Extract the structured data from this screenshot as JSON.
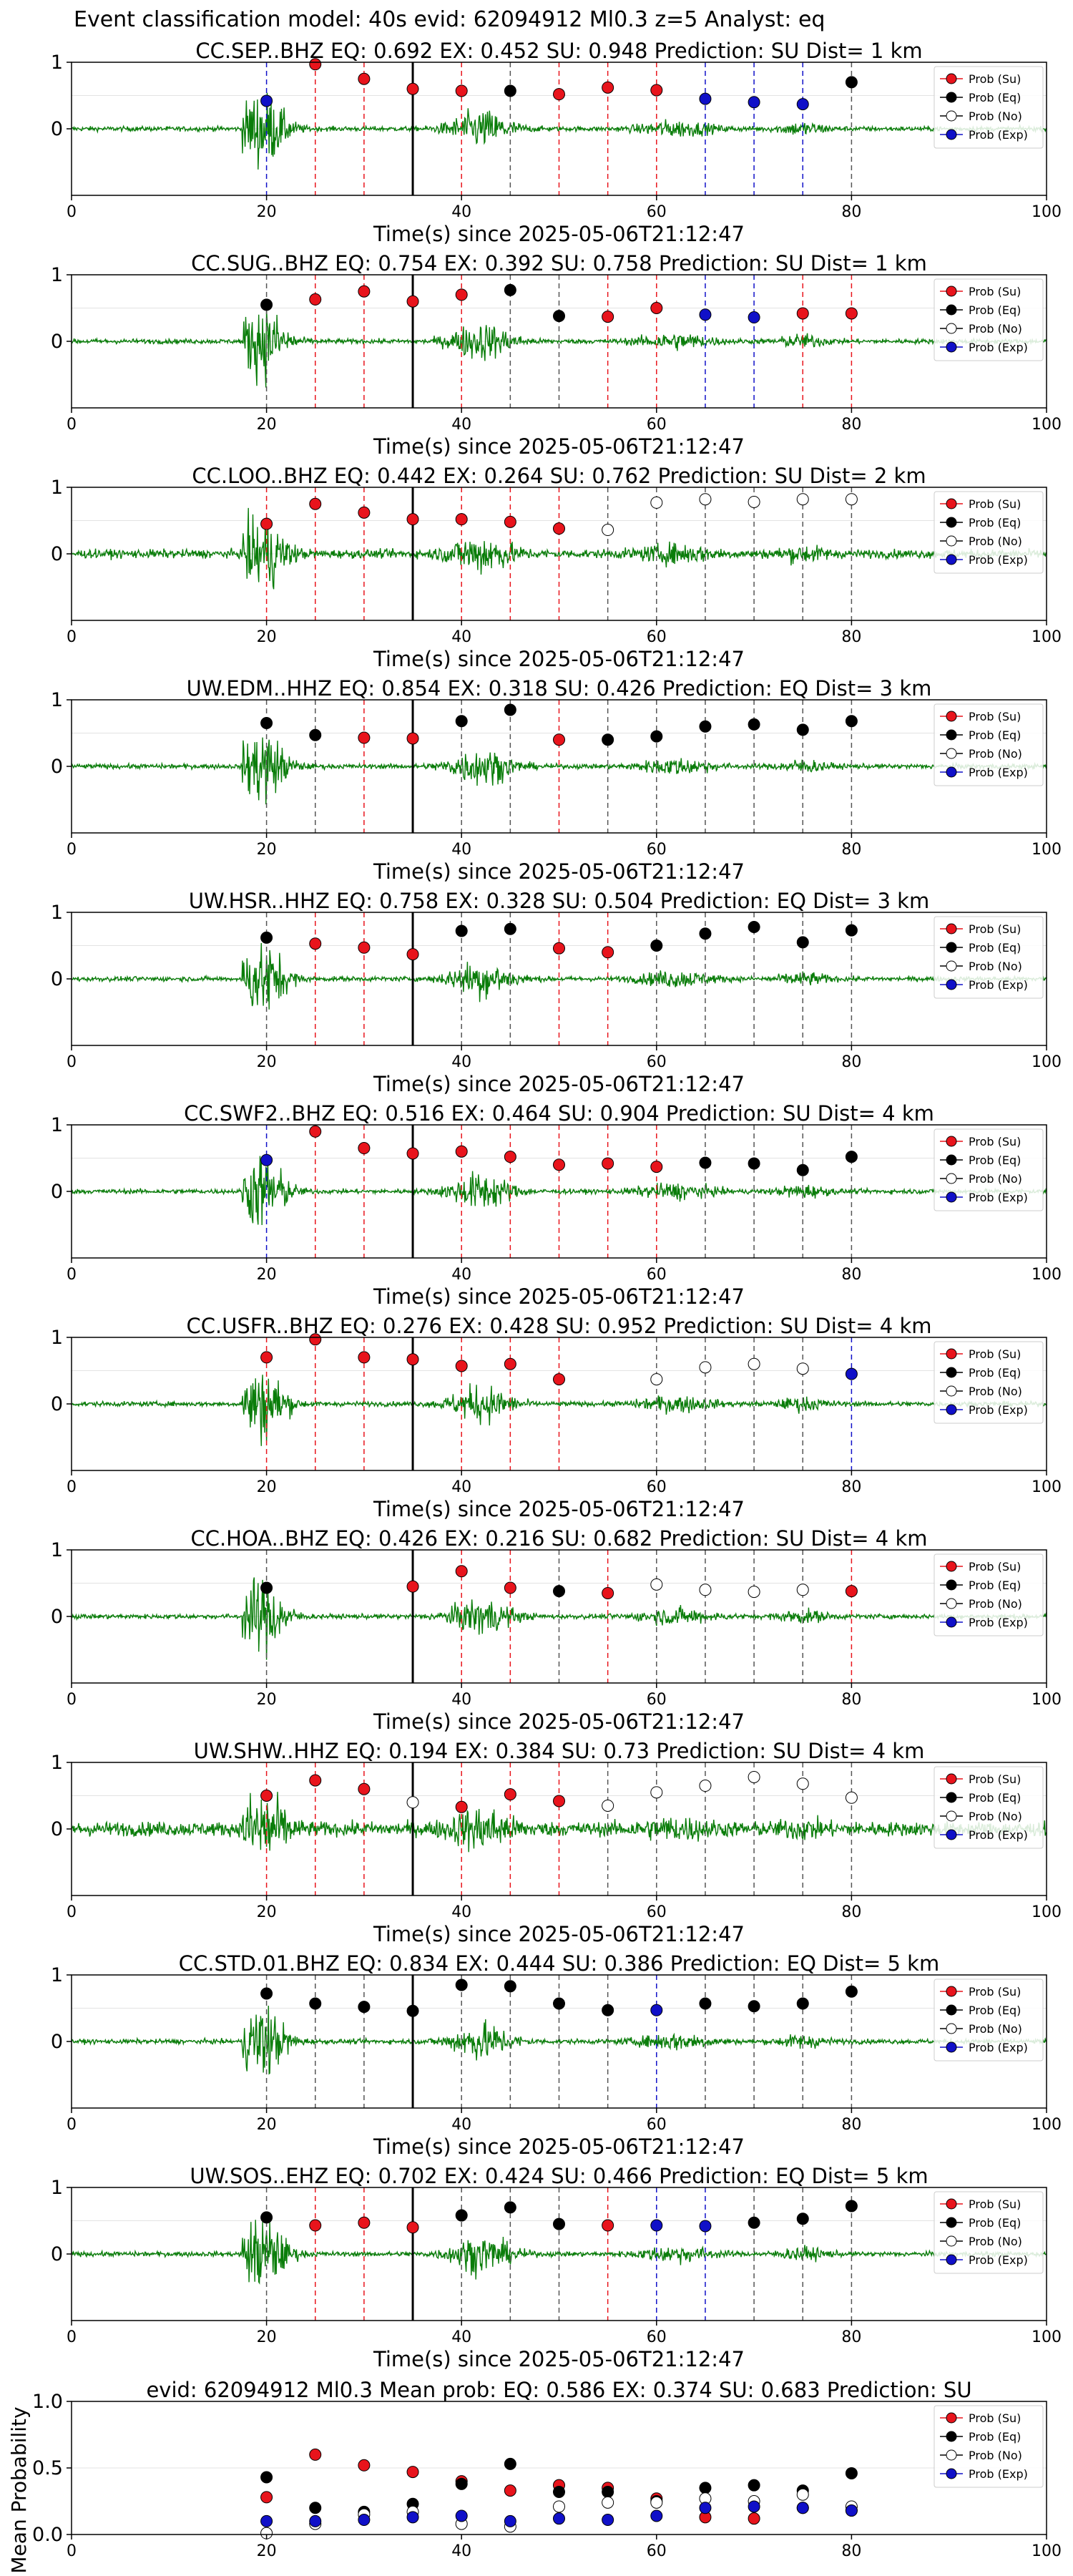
{
  "figure": {
    "suptitle": "Event classification model: 40s evid: 62094912 Ml0.3 z=5 Analyst: eq",
    "xlabel": "Time(s) since 2025-05-06T21:12:47",
    "mean_ylabel": "Mean Probability",
    "legend": [
      "Prob (Su)",
      "Prob (Eq)",
      "Prob (No)",
      "Prob (Exp)"
    ],
    "colors": {
      "Su": "#e8141c",
      "Eq": "#000000",
      "No": "#ffffff",
      "Exp": "#1010c8",
      "waveform": "#0a7d0a",
      "p_arrival": "#000000"
    }
  },
  "chart_data": [
    {
      "type": "scatter",
      "title": "CC.SEP..BHZ   EQ: 0.692  EX: 0.452  SU: 0.948   Prediction: SU    Dist= 1 km",
      "xlim": [
        0,
        100
      ],
      "ylim": [
        -1,
        1
      ],
      "xticks": [
        0,
        20,
        40,
        60,
        80,
        100
      ],
      "yticks": [
        0,
        1
      ],
      "p_arrival": 35,
      "points": [
        [
          20,
          0.42,
          "Exp"
        ],
        [
          25,
          0.97,
          "Su"
        ],
        [
          30,
          0.75,
          "Su"
        ],
        [
          35,
          0.6,
          "Su"
        ],
        [
          40,
          0.57,
          "Su"
        ],
        [
          45,
          0.57,
          "Eq"
        ],
        [
          50,
          0.52,
          "Su"
        ],
        [
          55,
          0.62,
          "Su"
        ],
        [
          60,
          0.58,
          "Su"
        ],
        [
          65,
          0.45,
          "Exp"
        ],
        [
          70,
          0.4,
          "Exp"
        ],
        [
          75,
          0.37,
          "Exp"
        ],
        [
          80,
          0.7,
          "Eq"
        ]
      ]
    },
    {
      "type": "scatter",
      "title": "CC.SUG..BHZ   EQ: 0.754  EX: 0.392  SU: 0.758   Prediction: SU    Dist= 1 km",
      "xlim": [
        0,
        100
      ],
      "ylim": [
        -1,
        1
      ],
      "xticks": [
        0,
        20,
        40,
        60,
        80,
        100
      ],
      "yticks": [
        0,
        1
      ],
      "p_arrival": 35,
      "points": [
        [
          20,
          0.55,
          "Eq"
        ],
        [
          25,
          0.63,
          "Su"
        ],
        [
          30,
          0.75,
          "Su"
        ],
        [
          35,
          0.6,
          "Su"
        ],
        [
          40,
          0.7,
          "Su"
        ],
        [
          45,
          0.77,
          "Eq"
        ],
        [
          50,
          0.38,
          "Eq"
        ],
        [
          55,
          0.37,
          "Su"
        ],
        [
          60,
          0.5,
          "Su"
        ],
        [
          65,
          0.4,
          "Exp"
        ],
        [
          70,
          0.36,
          "Exp"
        ],
        [
          75,
          0.42,
          "Su"
        ],
        [
          80,
          0.42,
          "Su"
        ]
      ]
    },
    {
      "type": "scatter",
      "title": "CC.LOO..BHZ   EQ: 0.442  EX: 0.264  SU: 0.762   Prediction: SU    Dist= 2 km",
      "xlim": [
        0,
        100
      ],
      "ylim": [
        -1,
        1
      ],
      "xticks": [
        0,
        20,
        40,
        60,
        80,
        100
      ],
      "yticks": [
        0,
        1
      ],
      "p_arrival": 35,
      "points": [
        [
          20,
          0.45,
          "Su"
        ],
        [
          25,
          0.75,
          "Su"
        ],
        [
          30,
          0.62,
          "Su"
        ],
        [
          35,
          0.52,
          "Su"
        ],
        [
          40,
          0.52,
          "Su"
        ],
        [
          45,
          0.48,
          "Su"
        ],
        [
          50,
          0.38,
          "Su"
        ],
        [
          55,
          0.36,
          "No"
        ],
        [
          60,
          0.77,
          "No"
        ],
        [
          65,
          0.82,
          "No"
        ],
        [
          70,
          0.78,
          "No"
        ],
        [
          75,
          0.82,
          "No"
        ],
        [
          80,
          0.82,
          "No"
        ]
      ]
    },
    {
      "type": "scatter",
      "title": "UW.EDM..HHZ   EQ: 0.854  EX: 0.318  SU: 0.426   Prediction: EQ    Dist= 3 km",
      "xlim": [
        0,
        100
      ],
      "ylim": [
        -1,
        1
      ],
      "xticks": [
        0,
        20,
        40,
        60,
        80,
        100
      ],
      "yticks": [
        0,
        1
      ],
      "p_arrival": 35,
      "points": [
        [
          20,
          0.65,
          "Eq"
        ],
        [
          25,
          0.47,
          "Eq"
        ],
        [
          30,
          0.43,
          "Su"
        ],
        [
          35,
          0.42,
          "Su"
        ],
        [
          40,
          0.68,
          "Eq"
        ],
        [
          45,
          0.85,
          "Eq"
        ],
        [
          50,
          0.4,
          "Su"
        ],
        [
          55,
          0.4,
          "Eq"
        ],
        [
          60,
          0.45,
          "Eq"
        ],
        [
          65,
          0.6,
          "Eq"
        ],
        [
          70,
          0.63,
          "Eq"
        ],
        [
          75,
          0.55,
          "Eq"
        ],
        [
          80,
          0.68,
          "Eq"
        ]
      ]
    },
    {
      "type": "scatter",
      "title": "UW.HSR..HHZ   EQ: 0.758  EX: 0.328  SU: 0.504   Prediction: EQ    Dist= 3 km",
      "xlim": [
        0,
        100
      ],
      "ylim": [
        -1,
        1
      ],
      "xticks": [
        0,
        20,
        40,
        60,
        80,
        100
      ],
      "yticks": [
        0,
        1
      ],
      "p_arrival": 35,
      "points": [
        [
          20,
          0.62,
          "Eq"
        ],
        [
          25,
          0.53,
          "Su"
        ],
        [
          30,
          0.47,
          "Su"
        ],
        [
          35,
          0.37,
          "Su"
        ],
        [
          40,
          0.72,
          "Eq"
        ],
        [
          45,
          0.75,
          "Eq"
        ],
        [
          50,
          0.46,
          "Su"
        ],
        [
          55,
          0.4,
          "Su"
        ],
        [
          60,
          0.5,
          "Eq"
        ],
        [
          65,
          0.68,
          "Eq"
        ],
        [
          70,
          0.78,
          "Eq"
        ],
        [
          75,
          0.55,
          "Eq"
        ],
        [
          80,
          0.73,
          "Eq"
        ]
      ]
    },
    {
      "type": "scatter",
      "title": "CC.SWF2..BHZ   EQ: 0.516  EX: 0.464  SU: 0.904   Prediction: SU    Dist= 4 km",
      "xlim": [
        0,
        100
      ],
      "ylim": [
        -1,
        1
      ],
      "xticks": [
        0,
        20,
        40,
        60,
        80,
        100
      ],
      "yticks": [
        0,
        1
      ],
      "p_arrival": 35,
      "points": [
        [
          20,
          0.47,
          "Exp"
        ],
        [
          25,
          0.9,
          "Su"
        ],
        [
          30,
          0.65,
          "Su"
        ],
        [
          35,
          0.57,
          "Su"
        ],
        [
          40,
          0.6,
          "Su"
        ],
        [
          45,
          0.52,
          "Su"
        ],
        [
          50,
          0.4,
          "Su"
        ],
        [
          55,
          0.42,
          "Su"
        ],
        [
          60,
          0.37,
          "Su"
        ],
        [
          65,
          0.43,
          "Eq"
        ],
        [
          70,
          0.42,
          "Eq"
        ],
        [
          75,
          0.32,
          "Eq"
        ],
        [
          80,
          0.52,
          "Eq"
        ]
      ]
    },
    {
      "type": "scatter",
      "title": "CC.USFR..BHZ   EQ: 0.276  EX: 0.428  SU: 0.952   Prediction: SU    Dist= 4 km",
      "xlim": [
        0,
        100
      ],
      "ylim": [
        -1,
        1
      ],
      "xticks": [
        0,
        20,
        40,
        60,
        80,
        100
      ],
      "yticks": [
        0,
        1
      ],
      "p_arrival": 35,
      "points": [
        [
          20,
          0.7,
          "Su"
        ],
        [
          25,
          0.97,
          "Su"
        ],
        [
          30,
          0.7,
          "Su"
        ],
        [
          35,
          0.67,
          "Su"
        ],
        [
          40,
          0.57,
          "Su"
        ],
        [
          45,
          0.6,
          "Su"
        ],
        [
          50,
          0.37,
          "Su"
        ],
        [
          60,
          0.37,
          "No"
        ],
        [
          65,
          0.55,
          "No"
        ],
        [
          70,
          0.6,
          "No"
        ],
        [
          75,
          0.53,
          "No"
        ],
        [
          80,
          0.45,
          "Exp"
        ]
      ]
    },
    {
      "type": "scatter",
      "title": "CC.HOA..BHZ   EQ: 0.426  EX: 0.216  SU: 0.682   Prediction: SU    Dist= 4 km",
      "xlim": [
        0,
        100
      ],
      "ylim": [
        -1,
        1
      ],
      "xticks": [
        0,
        20,
        40,
        60,
        80,
        100
      ],
      "yticks": [
        0,
        1
      ],
      "p_arrival": 35,
      "points": [
        [
          20,
          0.43,
          "Eq"
        ],
        [
          35,
          0.45,
          "Su"
        ],
        [
          40,
          0.68,
          "Su"
        ],
        [
          45,
          0.43,
          "Su"
        ],
        [
          50,
          0.38,
          "Eq"
        ],
        [
          55,
          0.35,
          "Su"
        ],
        [
          60,
          0.48,
          "No"
        ],
        [
          65,
          0.4,
          "No"
        ],
        [
          70,
          0.37,
          "No"
        ],
        [
          75,
          0.4,
          "No"
        ],
        [
          80,
          0.38,
          "Su"
        ]
      ]
    },
    {
      "type": "scatter",
      "title": "UW.SHW..HHZ   EQ: 0.194  EX: 0.384  SU: 0.73   Prediction: SU    Dist= 4 km",
      "xlim": [
        0,
        100
      ],
      "ylim": [
        -1,
        1
      ],
      "xticks": [
        0,
        20,
        40,
        60,
        80,
        100
      ],
      "yticks": [
        0,
        1
      ],
      "p_arrival": 35,
      "points": [
        [
          20,
          0.5,
          "Su"
        ],
        [
          25,
          0.73,
          "Su"
        ],
        [
          30,
          0.6,
          "Su"
        ],
        [
          35,
          0.4,
          "No"
        ],
        [
          40,
          0.33,
          "Su"
        ],
        [
          45,
          0.52,
          "Su"
        ],
        [
          50,
          0.42,
          "Su"
        ],
        [
          55,
          0.35,
          "No"
        ],
        [
          60,
          0.55,
          "No"
        ],
        [
          65,
          0.65,
          "No"
        ],
        [
          70,
          0.78,
          "No"
        ],
        [
          75,
          0.68,
          "No"
        ],
        [
          80,
          0.47,
          "No"
        ]
      ]
    },
    {
      "type": "scatter",
      "title": "CC.STD.01.BHZ   EQ: 0.834  EX: 0.444  SU: 0.386   Prediction: EQ    Dist= 5 km",
      "xlim": [
        0,
        100
      ],
      "ylim": [
        -1,
        1
      ],
      "xticks": [
        0,
        20,
        40,
        60,
        80,
        100
      ],
      "yticks": [
        0,
        1
      ],
      "p_arrival": 35,
      "points": [
        [
          20,
          0.72,
          "Eq"
        ],
        [
          25,
          0.57,
          "Eq"
        ],
        [
          30,
          0.52,
          "Eq"
        ],
        [
          35,
          0.46,
          "Eq"
        ],
        [
          40,
          0.85,
          "Eq"
        ],
        [
          45,
          0.83,
          "Eq"
        ],
        [
          50,
          0.57,
          "Eq"
        ],
        [
          55,
          0.47,
          "Eq"
        ],
        [
          60,
          0.47,
          "Exp"
        ],
        [
          65,
          0.57,
          "Eq"
        ],
        [
          70,
          0.53,
          "Eq"
        ],
        [
          75,
          0.57,
          "Eq"
        ],
        [
          80,
          0.75,
          "Eq"
        ]
      ]
    },
    {
      "type": "scatter",
      "title": "UW.SOS..EHZ   EQ: 0.702  EX: 0.424  SU: 0.466   Prediction: EQ    Dist= 5 km",
      "xlim": [
        0,
        100
      ],
      "ylim": [
        -1,
        1
      ],
      "xticks": [
        0,
        20,
        40,
        60,
        80,
        100
      ],
      "yticks": [
        0,
        1
      ],
      "p_arrival": 35,
      "points": [
        [
          20,
          0.55,
          "Eq"
        ],
        [
          25,
          0.43,
          "Su"
        ],
        [
          30,
          0.47,
          "Su"
        ],
        [
          35,
          0.4,
          "Su"
        ],
        [
          40,
          0.58,
          "Eq"
        ],
        [
          45,
          0.7,
          "Eq"
        ],
        [
          50,
          0.45,
          "Eq"
        ],
        [
          55,
          0.43,
          "Su"
        ],
        [
          60,
          0.43,
          "Exp"
        ],
        [
          65,
          0.42,
          "Exp"
        ],
        [
          70,
          0.47,
          "Eq"
        ],
        [
          75,
          0.53,
          "Eq"
        ],
        [
          80,
          0.72,
          "Eq"
        ]
      ]
    },
    {
      "type": "scatter",
      "mean": true,
      "title": "evid: 62094912   Ml0.3    Mean prob:    EQ: 0.586  EX: 0.374  SU: 0.683    Prediction: SU",
      "xlim": [
        0,
        100
      ],
      "ylim": [
        0,
        1
      ],
      "xticks": [
        0,
        20,
        40,
        60,
        80,
        100
      ],
      "yticks": [
        0.0,
        0.5,
        1.0
      ],
      "x": [
        20,
        25,
        30,
        35,
        40,
        45,
        50,
        55,
        60,
        65,
        70,
        75,
        80
      ],
      "series": [
        {
          "name": "Prob (Su)",
          "key": "Su",
          "values": [
            0.28,
            0.6,
            0.52,
            0.47,
            0.4,
            0.33,
            0.37,
            0.35,
            0.27,
            0.13,
            0.12,
            0.2,
            0.18
          ]
        },
        {
          "name": "Prob (Eq)",
          "key": "Eq",
          "values": [
            0.43,
            0.2,
            0.17,
            0.23,
            0.38,
            0.53,
            0.32,
            0.32,
            0.25,
            0.35,
            0.37,
            0.33,
            0.46
          ]
        },
        {
          "name": "Prob (No)",
          "key": "No",
          "values": [
            0.01,
            0.08,
            0.15,
            0.17,
            0.08,
            0.06,
            0.21,
            0.24,
            0.24,
            0.27,
            0.25,
            0.3,
            0.21
          ]
        },
        {
          "name": "Prob (Exp)",
          "key": "Exp",
          "values": [
            0.1,
            0.1,
            0.11,
            0.13,
            0.14,
            0.1,
            0.12,
            0.11,
            0.14,
            0.2,
            0.21,
            0.2,
            0.18
          ]
        }
      ]
    }
  ]
}
